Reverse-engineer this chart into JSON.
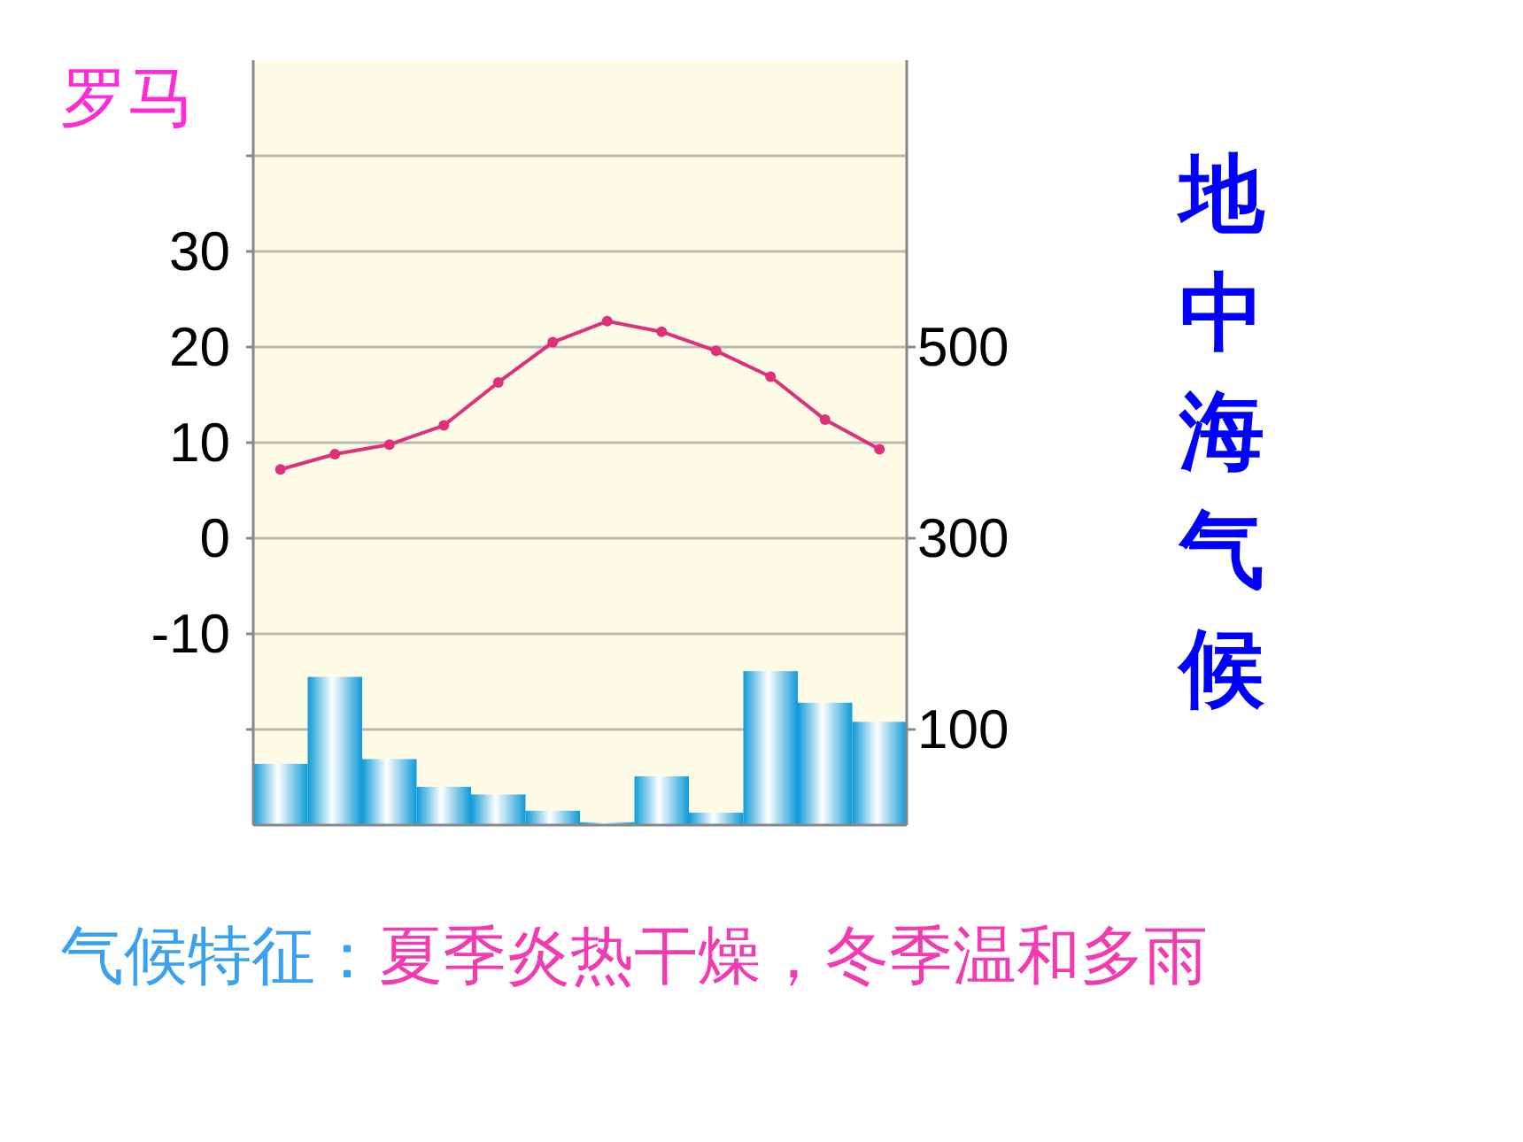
{
  "chart_data": {
    "type": "line",
    "title": "罗马",
    "subtitle": "地中海气候",
    "annotations": [
      "气候特征：",
      "夏季炎热干燥，冬季温和多雨"
    ],
    "categories": [
      null,
      null,
      null,
      null,
      null,
      null,
      null,
      null,
      null,
      null,
      null,
      null
    ],
    "series": [
      {
        "type": "bar",
        "axis": "y2",
        "color": "#0f9ad8",
        "values": [
          64,
          155,
          69,
          40,
          32,
          15,
          3,
          51,
          13,
          161,
          128,
          108
        ]
      },
      {
        "axis": "y",
        "color": "#e0307a",
        "marker": "circle",
        "line_style": "solid",
        "values": [
          7.2,
          8.8,
          9.8,
          11.8,
          16.3,
          20.5,
          22.7,
          21.6,
          19.6,
          16.9,
          12.4,
          9.3
        ]
      }
    ],
    "ylim": [
      -30,
      50
    ],
    "yticks": [
      {
        "value": -20,
        "label": null
      },
      -10,
      0,
      10,
      20,
      30,
      {
        "value": 40,
        "label": null
      }
    ],
    "y2lim": [
      0,
      800
    ],
    "y2ticks": [
      100,
      300,
      500
    ],
    "grid": "y"
  }
}
